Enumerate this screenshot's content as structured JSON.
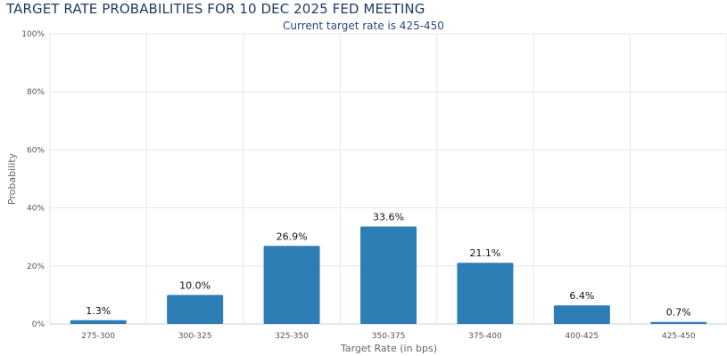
{
  "title": "TARGET RATE PROBABILITIES FOR 10 DEC 2025 FED MEETING",
  "subtitle": "Current target rate is 425-450",
  "chart_data": {
    "type": "bar",
    "title": "TARGET RATE PROBABILITIES FOR 10 DEC 2025 FED MEETING",
    "subtitle": "Current target rate is 425-450",
    "categories": [
      "275-300",
      "300-325",
      "325-350",
      "350-375",
      "375-400",
      "400-425",
      "425-450"
    ],
    "values": [
      1.3,
      10.0,
      26.9,
      33.6,
      21.1,
      6.4,
      0.7
    ],
    "data_labels": [
      "1.3%",
      "10.0%",
      "26.9%",
      "33.6%",
      "21.1%",
      "6.4%",
      "0.7%"
    ],
    "xlabel": "Target Rate (in bps)",
    "ylabel": "Probability",
    "ylim": [
      0,
      100
    ],
    "yticks": [
      0,
      20,
      40,
      60,
      80,
      100
    ],
    "ytick_labels": [
      "0%",
      "20%",
      "40%",
      "60%",
      "80%",
      "100%"
    ],
    "grid": true,
    "bar_color": "#2e7eb6",
    "grid_color": "#e6e6e6"
  }
}
